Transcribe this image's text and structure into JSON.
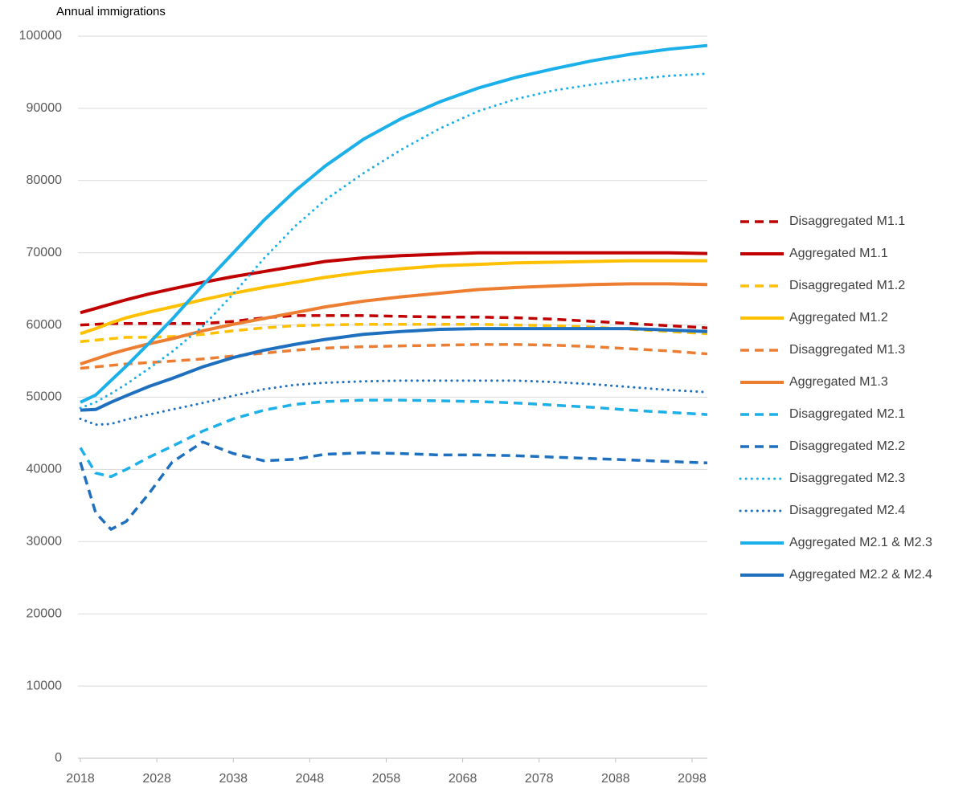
{
  "chart_data": {
    "type": "line",
    "y_label": "Annual immigrations",
    "x": [
      2018,
      2020,
      2022,
      2024,
      2027,
      2030,
      2034,
      2038,
      2042,
      2046,
      2050,
      2055,
      2060,
      2065,
      2070,
      2075,
      2080,
      2085,
      2090,
      2095,
      2100
    ],
    "xlim": [
      2018,
      2100
    ],
    "xticks": [
      2018,
      2028,
      2038,
      2048,
      2058,
      2068,
      2078,
      2088,
      2098
    ],
    "ylim": [
      0,
      100000
    ],
    "yticks": [
      0,
      10000,
      20000,
      30000,
      40000,
      50000,
      60000,
      70000,
      80000,
      90000,
      100000
    ],
    "grid": true,
    "legend": "right",
    "series": [
      {
        "name": "Disaggregated M1.1",
        "color": "#c00000",
        "style": "dashed",
        "values": [
          60000,
          60100,
          60200,
          60200,
          60200,
          60200,
          60200,
          60500,
          61000,
          61300,
          61300,
          61300,
          61200,
          61100,
          61100,
          61000,
          60800,
          60500,
          60200,
          59900,
          59600
        ]
      },
      {
        "name": "Aggregated M1.1",
        "color": "#c00000",
        "style": "solid",
        "values": [
          61700,
          62300,
          62900,
          63500,
          64300,
          65000,
          65900,
          66700,
          67400,
          68100,
          68800,
          69300,
          69600,
          69800,
          70000,
          70000,
          70000,
          70000,
          70000,
          70000,
          69900
        ]
      },
      {
        "name": "Disaggregated M1.2",
        "color": "#ffc000",
        "style": "dashed",
        "values": [
          57700,
          57900,
          58100,
          58300,
          58300,
          58400,
          58700,
          59200,
          59600,
          59900,
          60000,
          60100,
          60100,
          60100,
          60100,
          60000,
          59900,
          59700,
          59400,
          59100,
          58800
        ]
      },
      {
        "name": "Aggregated M1.2",
        "color": "#ffc000",
        "style": "solid",
        "values": [
          58800,
          59500,
          60300,
          61000,
          61800,
          62500,
          63500,
          64400,
          65200,
          65900,
          66600,
          67300,
          67800,
          68200,
          68400,
          68600,
          68700,
          68800,
          68900,
          68900,
          68900
        ]
      },
      {
        "name": "Disaggregated M1.3",
        "color": "#ed7d31",
        "style": "dashed",
        "values": [
          54000,
          54200,
          54400,
          54600,
          54800,
          55000,
          55300,
          55700,
          56100,
          56500,
          56800,
          57000,
          57100,
          57200,
          57300,
          57300,
          57200,
          57000,
          56700,
          56400,
          56000
        ]
      },
      {
        "name": "Aggregated M1.3",
        "color": "#ed7d31",
        "style": "solid",
        "values": [
          54600,
          55300,
          56000,
          56600,
          57400,
          58100,
          59200,
          60100,
          60900,
          61700,
          62500,
          63300,
          63900,
          64400,
          64900,
          65200,
          65400,
          65600,
          65700,
          65700,
          65600
        ]
      },
      {
        "name": "Disaggregated M2.1",
        "color": "#1cb0ea",
        "style": "dashed",
        "values": [
          43000,
          39500,
          39000,
          40000,
          41700,
          43200,
          45300,
          47000,
          48200,
          49000,
          49400,
          49600,
          49600,
          49500,
          49400,
          49200,
          48900,
          48600,
          48200,
          47900,
          47600
        ]
      },
      {
        "name": "Disaggregated M2.2",
        "color": "#1f6fbf",
        "style": "dashed",
        "values": [
          41000,
          34000,
          31700,
          32800,
          36700,
          41000,
          43800,
          42200,
          41200,
          41400,
          42100,
          42300,
          42200,
          42000,
          42000,
          41900,
          41700,
          41500,
          41300,
          41100,
          40900
        ]
      },
      {
        "name": "Disaggregated M2.3",
        "color": "#1cb0ea",
        "style": "dotted",
        "values": [
          48500,
          49300,
          50500,
          51800,
          54000,
          56300,
          59800,
          64300,
          69200,
          73600,
          77300,
          81000,
          84300,
          87200,
          89600,
          91300,
          92500,
          93300,
          94000,
          94500,
          94800
        ]
      },
      {
        "name": "Disaggregated M2.4",
        "color": "#1f6fbf",
        "style": "dotted",
        "values": [
          47000,
          46200,
          46300,
          46900,
          47600,
          48300,
          49200,
          50200,
          51100,
          51700,
          52000,
          52200,
          52300,
          52300,
          52300,
          52300,
          52100,
          51800,
          51400,
          51000,
          50700
        ]
      },
      {
        "name": "Aggregated M2.1 & M2.3",
        "color": "#1cb0ea",
        "style": "solid",
        "values": [
          49300,
          50300,
          52300,
          54300,
          57500,
          60800,
          65500,
          70000,
          74500,
          78500,
          82000,
          85700,
          88600,
          90900,
          92800,
          94300,
          95500,
          96600,
          97500,
          98200,
          98700
        ]
      },
      {
        "name": "Aggregated M2.2 & M2.4",
        "color": "#1f6fbf",
        "style": "solid",
        "values": [
          48200,
          48300,
          49300,
          50200,
          51500,
          52600,
          54200,
          55500,
          56500,
          57300,
          58000,
          58700,
          59100,
          59400,
          59500,
          59500,
          59500,
          59500,
          59500,
          59300,
          59100
        ]
      }
    ]
  }
}
